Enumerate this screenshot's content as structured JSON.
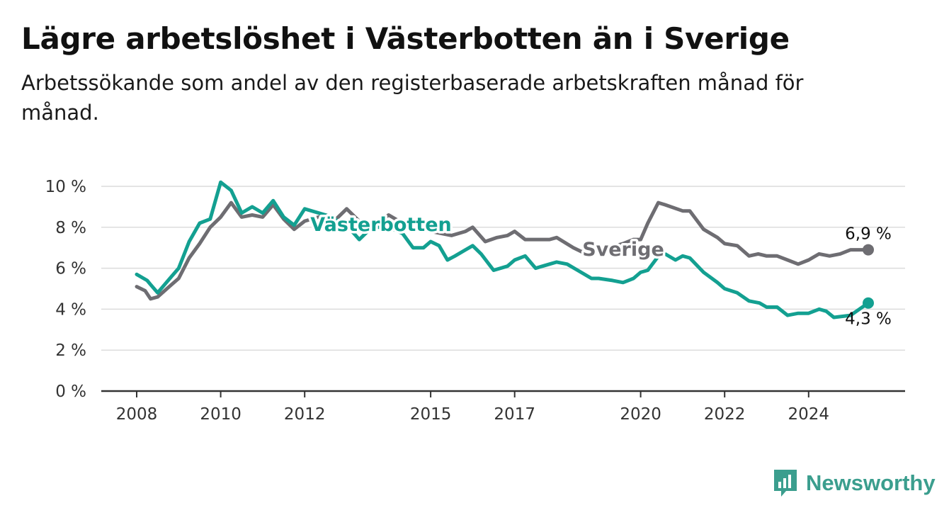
{
  "title": "Lägre arbetslöshet i Västerbotten än i Sverige",
  "subtitle": "Arbetssökande som andel av den registerbaserade arbetskraften månad för månad.",
  "brand": {
    "name": "Newsworthy",
    "color": "#3b9e8e",
    "icon": "bar-chart-flag-icon"
  },
  "chart_data": {
    "type": "line",
    "title": "Lägre arbetslöshet i Västerbotten än i Sverige",
    "xlabel": "",
    "ylabel": "",
    "xlim": [
      2008.0,
      2025.42
    ],
    "ylim": [
      0,
      10
    ],
    "y_ticks": [
      0,
      2,
      4,
      6,
      8,
      10
    ],
    "y_tick_labels": [
      "0 %",
      "2 %",
      "4 %",
      "6 %",
      "8 %",
      "10 %"
    ],
    "x_ticks": [
      2008,
      2010,
      2012,
      2015,
      2017,
      2020,
      2022,
      2024
    ],
    "x_tick_labels": [
      "2008",
      "2010",
      "2012",
      "2015",
      "2017",
      "2020",
      "2022",
      "2024"
    ],
    "grid": true,
    "legend": "inline labels",
    "series": [
      {
        "name": "Sverige",
        "color": "#6e6d72",
        "end_label": "6,9 %",
        "x": [
          2008.0,
          2008.2,
          2008.33,
          2008.5,
          2008.83,
          2009.0,
          2009.25,
          2009.5,
          2009.75,
          2010.0,
          2010.25,
          2010.5,
          2010.75,
          2011.0,
          2011.25,
          2011.5,
          2011.75,
          2012.0,
          2012.5,
          2012.75,
          2013.0,
          2013.5,
          2014.0,
          2014.5,
          2015.0,
          2015.5,
          2015.83,
          2016.0,
          2016.3,
          2016.58,
          2016.83,
          2017.0,
          2017.25,
          2017.5,
          2017.83,
          2018.0,
          2018.4,
          2018.6,
          2018.9,
          2019.25,
          2019.58,
          2019.83,
          2020.0,
          2020.17,
          2020.42,
          2020.58,
          2021.0,
          2021.17,
          2021.5,
          2021.83,
          2022.0,
          2022.3,
          2022.58,
          2022.8,
          2023.0,
          2023.25,
          2023.5,
          2023.75,
          2024.0,
          2024.25,
          2024.5,
          2024.75,
          2025.0,
          2025.42
        ],
        "y": [
          5.1,
          4.9,
          4.5,
          4.6,
          5.2,
          5.5,
          6.5,
          7.2,
          8.0,
          8.5,
          9.2,
          8.5,
          8.6,
          8.5,
          9.1,
          8.4,
          7.9,
          8.3,
          8.6,
          8.4,
          8.9,
          7.9,
          8.6,
          8.0,
          7.8,
          7.6,
          7.8,
          8.0,
          7.3,
          7.5,
          7.6,
          7.8,
          7.4,
          7.4,
          7.4,
          7.5,
          7.0,
          6.8,
          6.9,
          7.0,
          7.2,
          7.4,
          7.4,
          8.2,
          9.2,
          9.1,
          8.8,
          8.8,
          7.9,
          7.5,
          7.2,
          7.1,
          6.6,
          6.7,
          6.6,
          6.6,
          6.4,
          6.2,
          6.4,
          6.7,
          6.6,
          6.7,
          6.9,
          6.9
        ]
      },
      {
        "name": "Västerbotten",
        "color": "#13a091",
        "end_label": "4,3 %",
        "x": [
          2008.0,
          2008.25,
          2008.33,
          2008.5,
          2008.83,
          2009.0,
          2009.25,
          2009.5,
          2009.75,
          2010.0,
          2010.25,
          2010.5,
          2010.75,
          2011.0,
          2011.25,
          2011.5,
          2011.75,
          2012.0,
          2012.5,
          2013.0,
          2013.3,
          2013.6,
          2014.0,
          2014.33,
          2014.58,
          2014.83,
          2015.0,
          2015.2,
          2015.4,
          2015.58,
          2015.83,
          2016.0,
          2016.2,
          2016.5,
          2016.83,
          2017.0,
          2017.25,
          2017.5,
          2017.83,
          2018.0,
          2018.25,
          2018.5,
          2018.83,
          2019.0,
          2019.33,
          2019.58,
          2019.83,
          2020.0,
          2020.17,
          2020.5,
          2020.83,
          2021.0,
          2021.17,
          2021.5,
          2021.83,
          2022.0,
          2022.3,
          2022.58,
          2022.83,
          2023.0,
          2023.25,
          2023.5,
          2023.75,
          2024.0,
          2024.25,
          2024.42,
          2024.6,
          2025.0,
          2025.42
        ],
        "y": [
          5.7,
          5.4,
          5.2,
          4.8,
          5.6,
          6.0,
          7.3,
          8.2,
          8.4,
          10.2,
          9.8,
          8.7,
          9.0,
          8.7,
          9.3,
          8.5,
          8.1,
          8.9,
          8.6,
          8.1,
          7.4,
          8.0,
          8.0,
          7.7,
          7.0,
          7.0,
          7.3,
          7.1,
          6.4,
          6.6,
          6.9,
          7.1,
          6.7,
          5.9,
          6.1,
          6.4,
          6.6,
          6.0,
          6.2,
          6.3,
          6.2,
          5.9,
          5.5,
          5.5,
          5.4,
          5.3,
          5.5,
          5.8,
          5.9,
          6.8,
          6.4,
          6.6,
          6.5,
          5.8,
          5.3,
          5.0,
          4.8,
          4.4,
          4.3,
          4.1,
          4.1,
          3.7,
          3.8,
          3.8,
          4.0,
          3.9,
          3.6,
          3.7,
          4.3
        ]
      }
    ]
  }
}
